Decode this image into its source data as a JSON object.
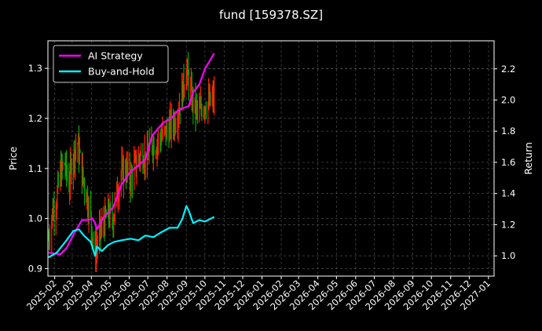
{
  "chart_data": {
    "type": "line",
    "title": "fund [159378.SZ]",
    "ylabel": "Price",
    "y2label": "Return",
    "grid": true,
    "legend_position": "top-left",
    "xlim": [
      "2025-01-21",
      "2027-01-10"
    ],
    "ylim": [
      0.885,
      1.355
    ],
    "y2lim": [
      0.87,
      2.38
    ],
    "x_ticks": [
      "2025-02",
      "2025-03",
      "2025-04",
      "2025-05",
      "2025-06",
      "2025-07",
      "2025-08",
      "2025-09",
      "2025-10",
      "2025-11",
      "2025-12",
      "2026-01",
      "2026-02",
      "2026-03",
      "2026-04",
      "2026-05",
      "2026-06",
      "2026-07",
      "2026-08",
      "2026-09",
      "2026-10",
      "2026-11",
      "2026-12",
      "2027-01"
    ],
    "y_ticks": [
      0.9,
      1.0,
      1.1,
      1.2,
      1.3
    ],
    "y_tick_labels": [
      "0.9",
      "1.0",
      "1.1",
      "1.2",
      "1.3"
    ],
    "y2_ticks": [
      1.0,
      1.2,
      1.4,
      1.6,
      1.8,
      2.0,
      2.2
    ],
    "y2_tick_labels": [
      "1.0",
      "1.2",
      "1.4",
      "1.6",
      "1.8",
      "2.0",
      "2.2"
    ],
    "colors": {
      "up": "#ff2200",
      "down": "#00aa00",
      "ai": "#ff00ff",
      "bh": "#00f0ff",
      "grid": "#444444"
    },
    "price_anchors": {
      "axis": "left",
      "x": [
        "2025-01-22",
        "2025-01-28",
        "2025-02-04",
        "2025-02-10",
        "2025-02-17",
        "2025-02-24",
        "2025-03-03",
        "2025-03-10",
        "2025-03-17",
        "2025-03-24",
        "2025-03-31",
        "2025-04-07",
        "2025-04-14",
        "2025-04-21",
        "2025-04-28",
        "2025-05-06",
        "2025-05-12",
        "2025-05-19",
        "2025-05-26",
        "2025-06-03",
        "2025-06-09",
        "2025-06-16",
        "2025-06-23",
        "2025-06-30",
        "2025-07-07",
        "2025-07-14",
        "2025-07-21",
        "2025-07-28",
        "2025-08-04",
        "2025-08-11",
        "2025-08-18",
        "2025-08-25",
        "2025-09-01",
        "2025-09-08",
        "2025-09-15",
        "2025-09-22",
        "2025-09-29",
        "2025-10-09",
        "2025-10-16"
      ],
      "y": [
        0.96,
        1.01,
        1.04,
        1.09,
        1.11,
        1.07,
        1.13,
        1.15,
        1.09,
        1.05,
        1.0,
        0.93,
        0.97,
        0.99,
        1.01,
        1.0,
        1.05,
        1.09,
        1.1,
        1.08,
        1.1,
        1.12,
        1.13,
        1.12,
        1.15,
        1.15,
        1.16,
        1.17,
        1.18,
        1.19,
        1.21,
        1.25,
        1.3,
        1.25,
        1.22,
        1.21,
        1.23,
        1.23,
        1.24
      ]
    },
    "series": [
      {
        "name": "AI Strategy",
        "axis": "right",
        "x": [
          "2025-01-22",
          "2025-02-10",
          "2025-02-20",
          "2025-03-05",
          "2025-03-17",
          "2025-03-27",
          "2025-04-03",
          "2025-04-07",
          "2025-04-10",
          "2025-04-21",
          "2025-05-06",
          "2025-05-20",
          "2025-06-03",
          "2025-06-16",
          "2025-06-27",
          "2025-07-08",
          "2025-07-18",
          "2025-07-28",
          "2025-08-07",
          "2025-08-18",
          "2025-08-28",
          "2025-09-05",
          "2025-09-12",
          "2025-09-22",
          "2025-10-01",
          "2025-10-16"
        ],
        "y": [
          1.02,
          1.01,
          1.05,
          1.15,
          1.23,
          1.23,
          1.24,
          1.21,
          1.17,
          1.25,
          1.31,
          1.46,
          1.54,
          1.58,
          1.62,
          1.77,
          1.82,
          1.86,
          1.88,
          1.93,
          1.95,
          1.96,
          2.05,
          2.1,
          2.2,
          2.3
        ]
      },
      {
        "name": "Buy-and-Hold",
        "axis": "right",
        "x": [
          "2025-01-22",
          "2025-02-04",
          "2025-02-12",
          "2025-02-20",
          "2025-03-03",
          "2025-03-12",
          "2025-03-20",
          "2025-03-31",
          "2025-04-07",
          "2025-04-10",
          "2025-04-18",
          "2025-04-28",
          "2025-05-08",
          "2025-05-20",
          "2025-06-03",
          "2025-06-16",
          "2025-06-27",
          "2025-07-10",
          "2025-07-22",
          "2025-08-05",
          "2025-08-18",
          "2025-08-26",
          "2025-09-01",
          "2025-09-05",
          "2025-09-12",
          "2025-09-22",
          "2025-10-01",
          "2025-10-16"
        ],
        "y": [
          0.99,
          1.02,
          1.06,
          1.1,
          1.16,
          1.17,
          1.13,
          1.09,
          1.0,
          1.06,
          1.03,
          1.07,
          1.09,
          1.1,
          1.11,
          1.1,
          1.13,
          1.12,
          1.15,
          1.18,
          1.18,
          1.24,
          1.32,
          1.29,
          1.21,
          1.23,
          1.22,
          1.25
        ]
      }
    ]
  }
}
